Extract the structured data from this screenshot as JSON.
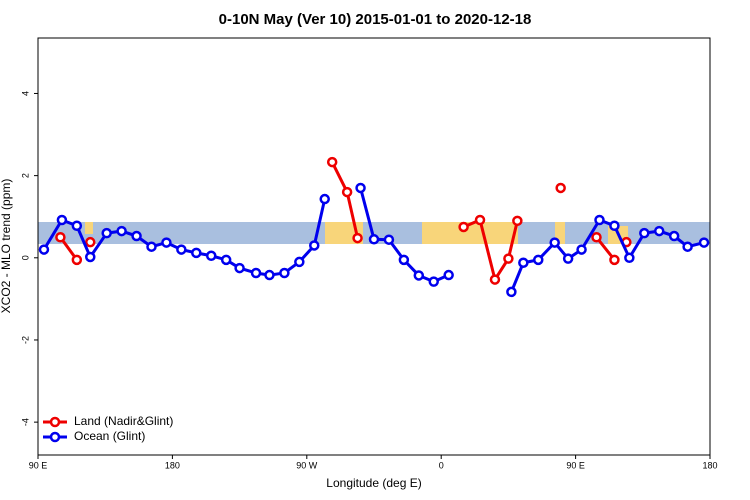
{
  "chart_data": {
    "type": "line",
    "title": "0-10N May (Ver 10)   2015-01-01 to 2020-12-18",
    "xlabel": "Longitude (deg E)",
    "ylabel": "XCO2 - MLO trend (ppm)",
    "xlim": [
      90,
      540
    ],
    "ylim": [
      -4.8,
      5.35
    ],
    "xticks": [
      {
        "value": 90,
        "label": "90 E"
      },
      180,
      {
        "value": 270,
        "label": "90 W"
      },
      {
        "value": 360,
        "label": "0"
      },
      {
        "value": 450,
        "label": "90 E"
      },
      {
        "value": 540,
        "label": "180"
      }
    ],
    "yticks": [
      -4,
      -2,
      0,
      2,
      4
    ],
    "legend": "bottom-left",
    "series": [
      {
        "name": "Land (Nadir&Glint)",
        "color": "#ee0000",
        "x": [
          105,
          116,
          null,
          125,
          null,
          287,
          297,
          304,
          null,
          375,
          386,
          396,
          405,
          411,
          null,
          440,
          null,
          464,
          476,
          null,
          484
        ],
        "values": [
          0.5,
          -0.05,
          null,
          0.38,
          null,
          2.33,
          1.6,
          0.48,
          null,
          0.75,
          0.92,
          -0.53,
          -0.02,
          0.9,
          null,
          1.7,
          null,
          0.5,
          -0.05,
          null,
          0.38
        ]
      },
      {
        "name": "Ocean (Glint)",
        "color": "#0000ee",
        "x": [
          94,
          106,
          116,
          125,
          136,
          146,
          156,
          166,
          176,
          186,
          196,
          206,
          216,
          225,
          236,
          245,
          255,
          265,
          275,
          282,
          null,
          306,
          315,
          325,
          335,
          345,
          355,
          365,
          null,
          407,
          415,
          425,
          436,
          445,
          454,
          466,
          476,
          486,
          496,
          506,
          516,
          525,
          536
        ],
        "values": [
          0.2,
          0.92,
          0.78,
          0.02,
          0.6,
          0.65,
          0.53,
          0.27,
          0.37,
          0.2,
          0.12,
          0.05,
          -0.05,
          -0.25,
          -0.37,
          -0.42,
          -0.37,
          -0.1,
          0.3,
          1.43,
          null,
          1.7,
          0.45,
          0.44,
          -0.05,
          -0.43,
          -0.58,
          -0.42,
          null,
          -0.83,
          -0.12,
          -0.05,
          0.37,
          -0.02,
          0.2,
          0.92,
          0.78,
          0.0,
          0.6,
          0.65,
          0.53,
          0.27,
          0.37
        ]
      }
    ]
  }
}
